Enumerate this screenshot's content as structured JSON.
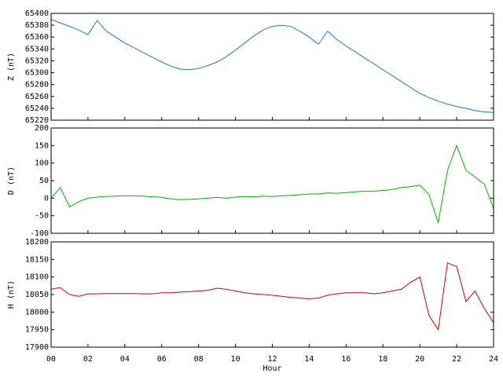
{
  "chart_data": [
    {
      "type": "line",
      "ylabel": "Z (nT)",
      "color": "#1e78d2",
      "x": [
        0,
        0.5,
        1,
        1.5,
        2,
        2.5,
        3,
        3.5,
        4,
        4.5,
        5,
        5.5,
        6,
        6.5,
        7,
        7.5,
        8,
        8.5,
        9,
        9.5,
        10,
        10.5,
        11,
        11.5,
        12,
        12.5,
        13,
        13.5,
        14,
        14.5,
        15,
        15.5,
        16,
        16.5,
        17,
        17.5,
        18,
        18.5,
        19,
        19.5,
        20,
        20.5,
        21,
        21.5,
        22,
        22.5,
        23,
        23.5,
        24
      ],
      "values": [
        65390,
        65384,
        65378,
        65372,
        65364,
        65388,
        65370,
        65360,
        65350,
        65342,
        65334,
        65326,
        65318,
        65311,
        65306,
        65305,
        65307,
        65312,
        65318,
        65327,
        65338,
        65350,
        65362,
        65372,
        65378,
        65380,
        65378,
        65370,
        65360,
        65348,
        65370,
        65356,
        65345,
        65335,
        65325,
        65315,
        65305,
        65295,
        65285,
        65275,
        65265,
        65258,
        65252,
        65247,
        65243,
        65240,
        65236,
        65234,
        65233
      ],
      "xlim": [
        0,
        24
      ],
      "xticks": [
        0,
        2,
        4,
        6,
        8,
        10,
        12,
        14,
        16,
        18,
        20,
        22,
        24
      ],
      "ylim": [
        65220,
        65400
      ],
      "yticks": [
        65220,
        65240,
        65260,
        65280,
        65300,
        65320,
        65340,
        65360,
        65380,
        65400
      ]
    },
    {
      "type": "line",
      "ylabel": "D (nT)",
      "color": "#00b000",
      "x": [
        0,
        0.5,
        1,
        1.5,
        2,
        2.5,
        3,
        3.5,
        4,
        4.5,
        5,
        5.5,
        6,
        6.5,
        7,
        7.5,
        8,
        8.5,
        9,
        9.5,
        10,
        10.5,
        11,
        11.5,
        12,
        12.5,
        13,
        13.5,
        14,
        14.5,
        15,
        15.5,
        16,
        16.5,
        17,
        17.5,
        18,
        18.5,
        19,
        19.5,
        20,
        20.5,
        21,
        21.5,
        22,
        22.5,
        23,
        23.5,
        24
      ],
      "values": [
        0,
        30,
        -25,
        -10,
        0,
        3,
        5,
        6,
        7,
        7,
        6,
        4,
        2,
        -2,
        -4,
        -3,
        -2,
        0,
        2,
        0,
        3,
        5,
        4,
        6,
        5,
        7,
        8,
        10,
        12,
        12,
        15,
        14,
        16,
        18,
        20,
        20,
        22,
        25,
        30,
        33,
        37,
        10,
        -70,
        80,
        150,
        80,
        60,
        40,
        -30
      ],
      "xlim": [
        0,
        24
      ],
      "xticks": [
        0,
        2,
        4,
        6,
        8,
        10,
        12,
        14,
        16,
        18,
        20,
        22,
        24
      ],
      "ylim": [
        -100,
        200
      ],
      "yticks": [
        -100,
        -50,
        0,
        50,
        100,
        150,
        200
      ]
    },
    {
      "type": "line",
      "ylabel": "H (nT)",
      "xlabel": "Hour",
      "color": "#d00000",
      "x": [
        0,
        0.5,
        1,
        1.5,
        2,
        2.5,
        3,
        3.5,
        4,
        4.5,
        5,
        5.5,
        6,
        6.5,
        7,
        7.5,
        8,
        8.5,
        9,
        9.5,
        10,
        10.5,
        11,
        11.5,
        12,
        12.5,
        13,
        13.5,
        14,
        14.5,
        15,
        15.5,
        16,
        16.5,
        17,
        17.5,
        18,
        18.5,
        19,
        19.5,
        20,
        20.5,
        21,
        21.5,
        22,
        22.5,
        23,
        23.5,
        24
      ],
      "values": [
        18065,
        18070,
        18050,
        18045,
        18052,
        18052,
        18053,
        18053,
        18053,
        18053,
        18052,
        18052,
        18055,
        18055,
        18057,
        18058,
        18060,
        18062,
        18068,
        18065,
        18060,
        18055,
        18052,
        18050,
        18048,
        18045,
        18042,
        18040,
        18038,
        18040,
        18048,
        18052,
        18055,
        18055,
        18055,
        18052,
        18055,
        18060,
        18065,
        18085,
        18100,
        17990,
        17950,
        18140,
        18130,
        18030,
        18060,
        18010,
        17970
      ],
      "xlim": [
        0,
        24
      ],
      "xticks": [
        {
          "value": 0,
          "label": "00"
        },
        {
          "value": 2,
          "label": "02"
        },
        {
          "value": 4,
          "label": "04"
        },
        {
          "value": 6,
          "label": "06"
        },
        {
          "value": 8,
          "label": "08"
        },
        {
          "value": 10,
          "label": "10"
        },
        {
          "value": 12,
          "label": "12"
        },
        {
          "value": 14,
          "label": "14"
        },
        {
          "value": 16,
          "label": "16"
        },
        {
          "value": 18,
          "label": "18"
        },
        {
          "value": 20,
          "label": "20"
        },
        {
          "value": 22,
          "label": "22"
        },
        {
          "value": 24,
          "label": "24"
        }
      ],
      "ylim": [
        17900,
        18200
      ],
      "yticks": [
        17900,
        17950,
        18000,
        18050,
        18100,
        18150,
        18200
      ]
    }
  ]
}
